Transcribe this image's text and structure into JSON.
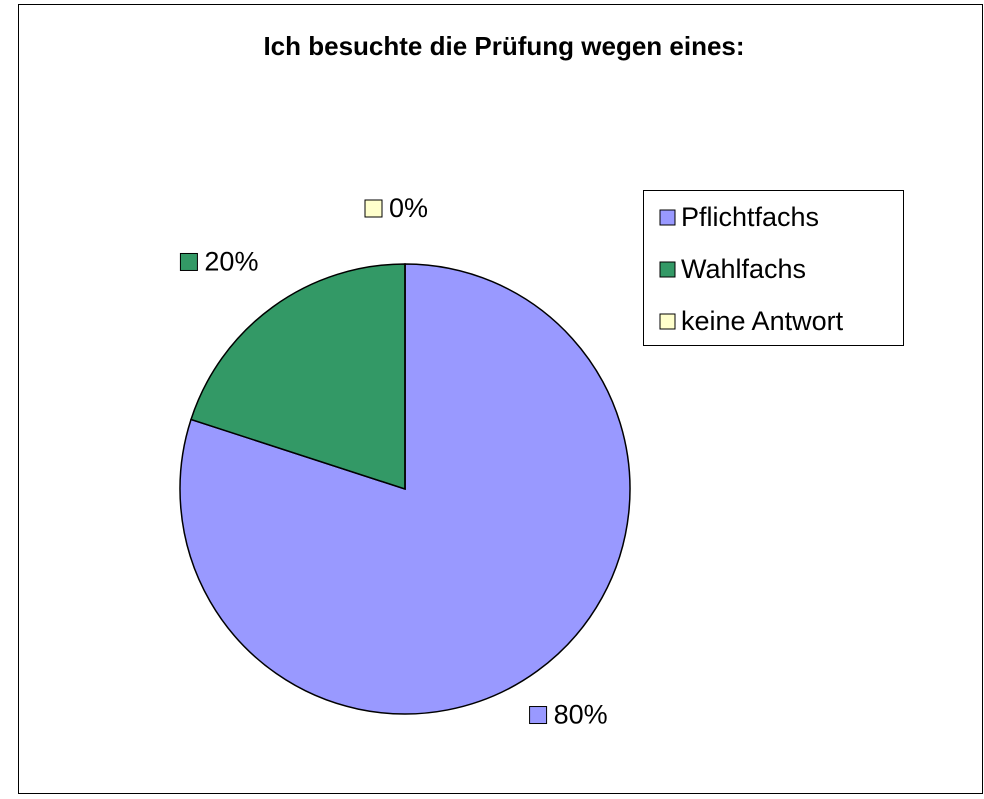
{
  "chart_data": {
    "type": "pie",
    "title": "Ich besuchte die Prüfung wegen eines:",
    "categories": [
      "Pflichtfachs",
      "Wahlfachs",
      "keine Antwort"
    ],
    "values": [
      80,
      20,
      0
    ],
    "value_labels": [
      "80%",
      "20%",
      "0%"
    ],
    "colors": [
      "#9999ff",
      "#339966",
      "#ffffcc"
    ],
    "legend": "right"
  }
}
